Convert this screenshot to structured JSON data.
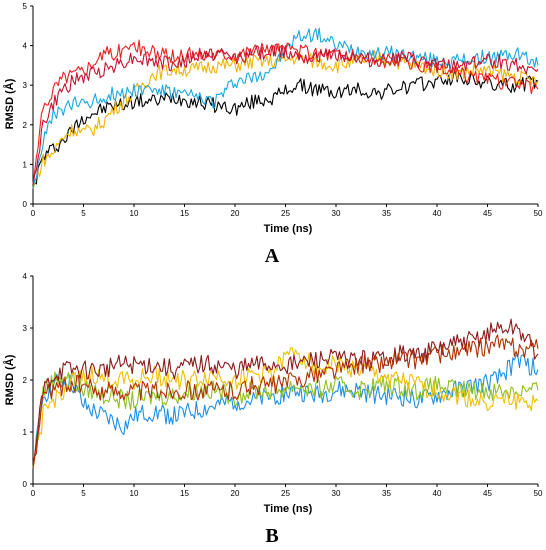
{
  "chart_data": [
    {
      "type": "line",
      "panel_label": "A",
      "xlabel": "Time (ns)",
      "ylabel": "RMSD (Å)",
      "xlim": [
        0,
        50
      ],
      "ylim": [
        0,
        5
      ],
      "xticks": [
        "0",
        "5",
        "10",
        "15",
        "20",
        "25",
        "30",
        "35",
        "40",
        "45",
        "50"
      ],
      "yticks": [
        "0",
        "1",
        "2",
        "3",
        "4",
        "5"
      ],
      "grid": false,
      "legend": "none",
      "series": [
        {
          "color": "#000000",
          "x": [
            0,
            1,
            2,
            3,
            4,
            5,
            6,
            7,
            8,
            9,
            10,
            12,
            14,
            16,
            18,
            20,
            22,
            24,
            26,
            28,
            30,
            32,
            34,
            36,
            38,
            40,
            42,
            44,
            46,
            48,
            50
          ],
          "y": [
            0.4,
            1.2,
            1.4,
            1.6,
            1.9,
            2.2,
            2.3,
            2.4,
            2.5,
            2.5,
            2.6,
            2.6,
            2.7,
            2.6,
            2.5,
            2.4,
            2.6,
            2.7,
            3.0,
            2.9,
            2.8,
            2.9,
            2.8,
            2.9,
            3.0,
            3.1,
            3.2,
            3.1,
            3.0,
            3.0,
            3.1
          ]
        },
        {
          "color": "#f0b400",
          "x": [
            0,
            1,
            2,
            3,
            4,
            5,
            6,
            7,
            8,
            9,
            10,
            12,
            14,
            16,
            18,
            20,
            22,
            24,
            26,
            28,
            30,
            32,
            34,
            36,
            38,
            40,
            42,
            44,
            46,
            48,
            50
          ],
          "y": [
            0.4,
            1.1,
            1.3,
            1.7,
            1.9,
            1.8,
            1.9,
            2.1,
            2.4,
            2.6,
            2.8,
            3.3,
            3.4,
            3.4,
            3.5,
            3.5,
            3.6,
            3.6,
            3.7,
            3.6,
            3.5,
            3.6,
            3.7,
            3.6,
            3.5,
            3.4,
            3.3,
            3.4,
            3.3,
            3.2,
            3.1
          ]
        },
        {
          "color": "#1aa7e0",
          "x": [
            0,
            1,
            2,
            3,
            4,
            5,
            6,
            7,
            8,
            9,
            10,
            12,
            14,
            16,
            18,
            20,
            22,
            24,
            26,
            28,
            30,
            32,
            34,
            36,
            38,
            40,
            42,
            44,
            46,
            48,
            50
          ],
          "y": [
            0.4,
            1.6,
            2.2,
            2.4,
            2.5,
            2.6,
            2.6,
            2.7,
            2.8,
            2.8,
            2.9,
            2.9,
            2.8,
            2.7,
            2.6,
            3.1,
            3.2,
            3.5,
            4.2,
            4.3,
            4.0,
            3.9,
            3.8,
            3.8,
            3.7,
            3.6,
            3.6,
            3.7,
            3.7,
            3.8,
            3.5
          ]
        },
        {
          "color": "#e8201e",
          "x": [
            0,
            1,
            2,
            3,
            4,
            5,
            6,
            7,
            8,
            9,
            10,
            12,
            14,
            16,
            18,
            20,
            22,
            24,
            26,
            28,
            30,
            32,
            34,
            36,
            38,
            40,
            42,
            44,
            46,
            48,
            50
          ],
          "y": [
            0.5,
            2.4,
            2.9,
            3.2,
            3.3,
            3.4,
            3.6,
            3.8,
            3.8,
            3.9,
            4.0,
            3.8,
            3.7,
            3.8,
            3.8,
            3.8,
            3.9,
            3.9,
            3.9,
            3.8,
            3.8,
            3.7,
            3.6,
            3.6,
            3.5,
            3.4,
            3.3,
            3.2,
            3.1,
            3.0,
            2.9
          ]
        },
        {
          "color": "#c8102e",
          "x": [
            0,
            1,
            2,
            3,
            4,
            5,
            6,
            7,
            8,
            9,
            10,
            12,
            14,
            16,
            18,
            20,
            22,
            24,
            26,
            28,
            30,
            32,
            34,
            36,
            38,
            40,
            42,
            44,
            46,
            48,
            50
          ],
          "y": [
            0.5,
            2.0,
            2.5,
            2.9,
            3.1,
            3.2,
            3.3,
            3.4,
            3.5,
            3.6,
            3.7,
            3.6,
            3.5,
            3.7,
            3.8,
            3.7,
            3.8,
            3.9,
            3.8,
            3.7,
            3.8,
            3.7,
            3.6,
            3.7,
            3.6,
            3.5,
            3.5,
            3.6,
            3.6,
            3.5,
            3.4
          ]
        }
      ]
    },
    {
      "type": "line",
      "panel_label": "B",
      "xlabel": "Time (ns)",
      "ylabel": "RMSD (Å)",
      "xlim": [
        0,
        50
      ],
      "ylim": [
        0,
        4
      ],
      "xticks": [
        "0",
        "5",
        "10",
        "15",
        "20",
        "25",
        "30",
        "35",
        "40",
        "45",
        "50"
      ],
      "yticks": [
        "0",
        "1",
        "2",
        "3",
        "4"
      ],
      "grid": false,
      "legend": "none",
      "series": [
        {
          "color": "#1e8fe6",
          "x": [
            0,
            1,
            2,
            3,
            4,
            5,
            6,
            7,
            8,
            9,
            10,
            12,
            14,
            16,
            18,
            20,
            22,
            24,
            26,
            28,
            30,
            32,
            34,
            36,
            38,
            40,
            42,
            44,
            46,
            48,
            50
          ],
          "y": [
            0.3,
            1.7,
            1.9,
            2.0,
            1.9,
            1.5,
            1.4,
            1.3,
            1.2,
            1.1,
            1.3,
            1.4,
            1.3,
            1.4,
            1.5,
            1.6,
            1.6,
            1.7,
            1.8,
            1.7,
            1.8,
            1.8,
            1.7,
            1.7,
            1.6,
            1.7,
            1.8,
            1.9,
            2.0,
            2.4,
            2.2
          ]
        },
        {
          "color": "#90c020",
          "x": [
            0,
            1,
            2,
            3,
            4,
            5,
            6,
            7,
            8,
            9,
            10,
            12,
            14,
            16,
            18,
            20,
            22,
            24,
            26,
            28,
            30,
            32,
            34,
            36,
            38,
            40,
            42,
            44,
            46,
            48,
            50
          ],
          "y": [
            0.3,
            1.8,
            2.0,
            2.1,
            2.0,
            1.8,
            1.8,
            1.7,
            1.7,
            1.6,
            1.6,
            1.7,
            1.7,
            1.8,
            1.8,
            1.7,
            1.8,
            1.8,
            1.9,
            1.8,
            1.9,
            1.8,
            1.9,
            1.9,
            1.8,
            1.9,
            1.8,
            1.8,
            1.8,
            1.8,
            1.8
          ]
        },
        {
          "color": "#f0c000",
          "x": [
            0,
            1,
            2,
            3,
            4,
            5,
            6,
            7,
            8,
            9,
            10,
            12,
            14,
            16,
            18,
            20,
            22,
            24,
            26,
            28,
            30,
            32,
            34,
            36,
            38,
            40,
            42,
            44,
            46,
            48,
            50
          ],
          "y": [
            0.3,
            1.3,
            1.6,
            1.8,
            2.0,
            2.0,
            2.1,
            2.0,
            2.0,
            2.1,
            2.0,
            2.1,
            2.0,
            2.0,
            2.1,
            2.0,
            2.1,
            2.2,
            2.6,
            2.2,
            2.3,
            2.2,
            2.1,
            2.0,
            1.9,
            1.8,
            1.7,
            1.6,
            1.6,
            1.6,
            1.6
          ]
        },
        {
          "color": "#8b1a1a",
          "x": [
            0,
            1,
            2,
            3,
            4,
            5,
            6,
            7,
            8,
            9,
            10,
            12,
            14,
            16,
            18,
            20,
            22,
            24,
            26,
            28,
            30,
            32,
            34,
            36,
            38,
            40,
            42,
            44,
            46,
            48,
            50
          ],
          "y": [
            0.3,
            1.8,
            2.1,
            2.2,
            2.2,
            2.2,
            2.2,
            2.2,
            2.3,
            2.3,
            2.3,
            2.3,
            2.2,
            2.3,
            2.3,
            2.2,
            2.3,
            2.3,
            2.3,
            2.4,
            2.4,
            2.4,
            2.4,
            2.5,
            2.5,
            2.6,
            2.7,
            2.8,
            3.0,
            3.0,
            2.5
          ]
        },
        {
          "color": "#b03000",
          "x": [
            0,
            1,
            2,
            3,
            4,
            5,
            6,
            7,
            8,
            9,
            10,
            12,
            14,
            16,
            18,
            20,
            22,
            24,
            26,
            28,
            30,
            32,
            34,
            36,
            38,
            40,
            42,
            44,
            46,
            48,
            50
          ],
          "y": [
            0.3,
            1.7,
            1.8,
            1.9,
            1.9,
            1.9,
            1.8,
            1.8,
            1.8,
            1.8,
            1.8,
            1.8,
            1.8,
            1.8,
            1.8,
            1.8,
            1.9,
            1.9,
            2.0,
            2.1,
            2.2,
            2.3,
            2.3,
            2.4,
            2.4,
            2.5,
            2.5,
            2.6,
            2.7,
            2.6,
            2.6
          ]
        }
      ]
    }
  ]
}
